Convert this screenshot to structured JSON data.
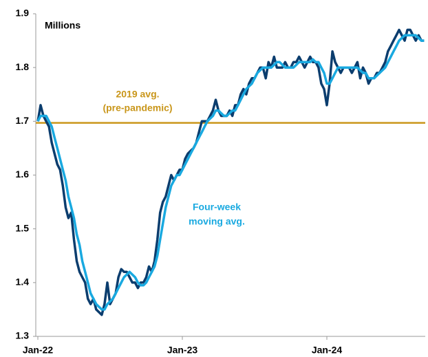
{
  "chart_data": {
    "type": "line",
    "unit_label": "Millions",
    "categories": [
      "Jan-22",
      null,
      null,
      null,
      null,
      null,
      null,
      null,
      null,
      null,
      null,
      null,
      null,
      null,
      null,
      null,
      null,
      null,
      null,
      null,
      null,
      null,
      null,
      null,
      null,
      null,
      null,
      null,
      null,
      null,
      null,
      null,
      null,
      null,
      null,
      null,
      null,
      null,
      null,
      null,
      null,
      null,
      null,
      null,
      null,
      null,
      null,
      null,
      null,
      null,
      null,
      null,
      "Jan-23",
      null,
      null,
      null,
      null,
      null,
      null,
      null,
      null,
      null,
      null,
      null,
      null,
      null,
      null,
      null,
      null,
      null,
      null,
      null,
      null,
      null,
      null,
      null,
      null,
      null,
      null,
      null,
      null,
      null,
      null,
      null,
      null,
      null,
      null,
      null,
      null,
      null,
      null,
      null,
      null,
      null,
      null,
      null,
      null,
      null,
      null,
      null,
      null,
      null,
      null,
      null,
      "Jan-24",
      null,
      null,
      null,
      null,
      null,
      null,
      null,
      null,
      null,
      null,
      null,
      null,
      null,
      null,
      null,
      null,
      null,
      null,
      null,
      null,
      null,
      null,
      null,
      null,
      null,
      null,
      null,
      null,
      null,
      null,
      null,
      null,
      null,
      null,
      null
    ],
    "series": [
      {
        "color": "#0b3d6e",
        "values": [
          1.7,
          1.73,
          1.71,
          1.7,
          1.69,
          1.66,
          1.64,
          1.62,
          1.61,
          1.58,
          1.54,
          1.52,
          1.53,
          1.48,
          1.44,
          1.42,
          1.41,
          1.4,
          1.37,
          1.36,
          1.37,
          1.35,
          1.345,
          1.34,
          1.36,
          1.4,
          1.36,
          1.37,
          1.38,
          1.41,
          1.425,
          1.42,
          1.42,
          1.41,
          1.4,
          1.4,
          1.39,
          1.4,
          1.4,
          1.41,
          1.43,
          1.42,
          1.44,
          1.48,
          1.53,
          1.55,
          1.56,
          1.58,
          1.6,
          1.59,
          1.6,
          1.61,
          1.61,
          1.63,
          1.64,
          1.645,
          1.65,
          1.66,
          1.68,
          1.7,
          1.7,
          1.7,
          1.71,
          1.72,
          1.74,
          1.72,
          1.71,
          1.71,
          1.71,
          1.72,
          1.71,
          1.73,
          1.73,
          1.75,
          1.76,
          1.75,
          1.77,
          1.78,
          1.78,
          1.79,
          1.8,
          1.8,
          1.78,
          1.81,
          1.8,
          1.82,
          1.8,
          1.8,
          1.8,
          1.81,
          1.8,
          1.8,
          1.81,
          1.81,
          1.82,
          1.81,
          1.8,
          1.81,
          1.82,
          1.81,
          1.81,
          1.8,
          1.77,
          1.76,
          1.73,
          1.77,
          1.83,
          1.81,
          1.8,
          1.79,
          1.8,
          1.8,
          1.8,
          1.79,
          1.8,
          1.81,
          1.78,
          1.8,
          1.79,
          1.77,
          1.78,
          1.78,
          1.79,
          1.79,
          1.8,
          1.81,
          1.83,
          1.84,
          1.85,
          1.86,
          1.87,
          1.86,
          1.85,
          1.87,
          1.87,
          1.86,
          1.85,
          1.86,
          1.85,
          1.85
        ]
      },
      {
        "name_lines": [
          "Four-week",
          "moving avg."
        ],
        "color": "#19a9e0",
        "values": [
          1.7,
          1.71,
          1.71,
          1.71,
          1.7,
          1.69,
          1.67,
          1.65,
          1.63,
          1.61,
          1.59,
          1.56,
          1.54,
          1.52,
          1.49,
          1.47,
          1.44,
          1.42,
          1.4,
          1.38,
          1.37,
          1.36,
          1.355,
          1.35,
          1.35,
          1.36,
          1.365,
          1.37,
          1.38,
          1.39,
          1.4,
          1.41,
          1.415,
          1.42,
          1.415,
          1.41,
          1.4,
          1.395,
          1.395,
          1.4,
          1.41,
          1.42,
          1.43,
          1.45,
          1.48,
          1.51,
          1.54,
          1.56,
          1.58,
          1.59,
          1.6,
          1.6,
          1.61,
          1.62,
          1.63,
          1.64,
          1.65,
          1.66,
          1.67,
          1.68,
          1.69,
          1.7,
          1.705,
          1.71,
          1.72,
          1.72,
          1.715,
          1.71,
          1.71,
          1.715,
          1.72,
          1.72,
          1.73,
          1.74,
          1.75,
          1.76,
          1.765,
          1.77,
          1.78,
          1.79,
          1.795,
          1.8,
          1.8,
          1.8,
          1.8,
          1.805,
          1.81,
          1.81,
          1.805,
          1.8,
          1.8,
          1.8,
          1.8,
          1.805,
          1.81,
          1.81,
          1.81,
          1.81,
          1.81,
          1.815,
          1.81,
          1.81,
          1.8,
          1.79,
          1.77,
          1.77,
          1.78,
          1.79,
          1.8,
          1.8,
          1.8,
          1.8,
          1.8,
          1.8,
          1.8,
          1.8,
          1.795,
          1.79,
          1.79,
          1.78,
          1.78,
          1.78,
          1.785,
          1.79,
          1.795,
          1.8,
          1.81,
          1.82,
          1.83,
          1.84,
          1.85,
          1.855,
          1.86,
          1.86,
          1.86,
          1.86,
          1.86,
          1.855,
          1.85,
          1.85
        ]
      }
    ],
    "reference_line": {
      "value": 1.697,
      "color": "#c9961a",
      "label_lines": [
        "2019 avg.",
        "(pre-pandemic)"
      ]
    },
    "ylim": [
      1.3,
      1.9
    ],
    "yticks": [
      1.3,
      1.4,
      1.5,
      1.6,
      1.7,
      1.8,
      1.9
    ]
  }
}
